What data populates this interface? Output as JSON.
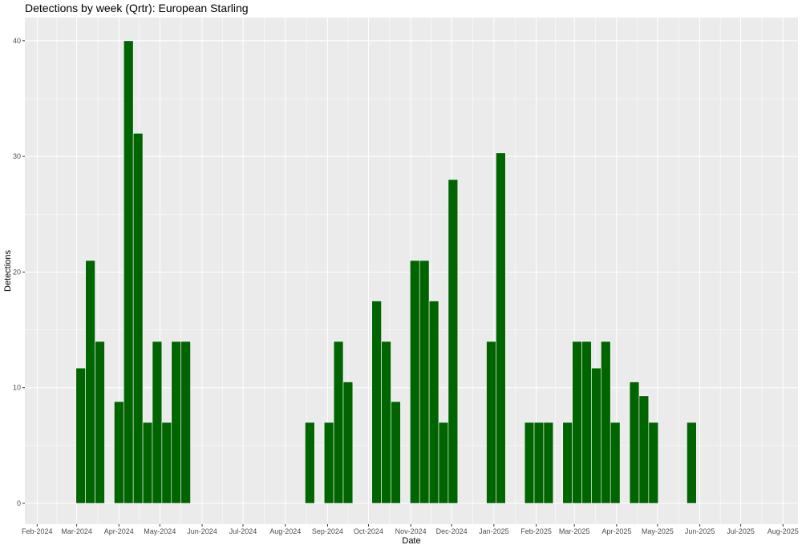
{
  "chart_data": {
    "type": "bar",
    "title": "Detections by week (Qrtr): European Starling",
    "xlabel": "Date",
    "ylabel": "Detections",
    "ylim": [
      -1.8,
      42
    ],
    "yticks": [
      0,
      10,
      20,
      30,
      40
    ],
    "xlim": [
      "2024-01-23",
      "2025-08-12"
    ],
    "xticks": [
      {
        "date": "2024-02-01",
        "label": "Feb-2024"
      },
      {
        "date": "2024-03-01",
        "label": "Mar-2024"
      },
      {
        "date": "2024-04-01",
        "label": "Apr-2024"
      },
      {
        "date": "2024-05-01",
        "label": "May-2024"
      },
      {
        "date": "2024-06-01",
        "label": "Jun-2024"
      },
      {
        "date": "2024-07-01",
        "label": "Jul-2024"
      },
      {
        "date": "2024-08-01",
        "label": "Aug-2024"
      },
      {
        "date": "2024-09-01",
        "label": "Sep-2024"
      },
      {
        "date": "2024-10-01",
        "label": "Oct-2024"
      },
      {
        "date": "2024-11-01",
        "label": "Nov-2024"
      },
      {
        "date": "2024-12-01",
        "label": "Dec-2024"
      },
      {
        "date": "2025-01-01",
        "label": "Jan-2025"
      },
      {
        "date": "2025-02-01",
        "label": "Feb-2025"
      },
      {
        "date": "2025-03-01",
        "label": "Mar-2025"
      },
      {
        "date": "2025-04-01",
        "label": "Apr-2025"
      },
      {
        "date": "2025-05-01",
        "label": "May-2025"
      },
      {
        "date": "2025-06-01",
        "label": "Jun-2025"
      },
      {
        "date": "2025-07-01",
        "label": "Jul-2025"
      },
      {
        "date": "2025-08-01",
        "label": "Aug-2025"
      }
    ],
    "bar_color": "#006400",
    "panel_color": "#ebebeb",
    "grid": true,
    "points": [
      {
        "x": "2024-03-04",
        "y": 11.7
      },
      {
        "x": "2024-03-11",
        "y": 21
      },
      {
        "x": "2024-03-18",
        "y": 14
      },
      {
        "x": "2024-04-01",
        "y": 8.8
      },
      {
        "x": "2024-04-08",
        "y": 40
      },
      {
        "x": "2024-04-15",
        "y": 32
      },
      {
        "x": "2024-04-22",
        "y": 7
      },
      {
        "x": "2024-04-29",
        "y": 14
      },
      {
        "x": "2024-05-06",
        "y": 7
      },
      {
        "x": "2024-05-13",
        "y": 14
      },
      {
        "x": "2024-05-20",
        "y": 14
      },
      {
        "x": "2024-08-19",
        "y": 7
      },
      {
        "x": "2024-09-02",
        "y": 7
      },
      {
        "x": "2024-09-09",
        "y": 14
      },
      {
        "x": "2024-09-16",
        "y": 10.5
      },
      {
        "x": "2024-10-07",
        "y": 17.5
      },
      {
        "x": "2024-10-14",
        "y": 14
      },
      {
        "x": "2024-10-21",
        "y": 8.8
      },
      {
        "x": "2024-11-04",
        "y": 21
      },
      {
        "x": "2024-11-11",
        "y": 21
      },
      {
        "x": "2024-11-18",
        "y": 17.5
      },
      {
        "x": "2024-11-25",
        "y": 7
      },
      {
        "x": "2024-12-02",
        "y": 28
      },
      {
        "x": "2024-12-30",
        "y": 14
      },
      {
        "x": "2025-01-06",
        "y": 30.3
      },
      {
        "x": "2025-01-27",
        "y": 7
      },
      {
        "x": "2025-02-03",
        "y": 7
      },
      {
        "x": "2025-02-10",
        "y": 7
      },
      {
        "x": "2025-02-24",
        "y": 7
      },
      {
        "x": "2025-03-03",
        "y": 14
      },
      {
        "x": "2025-03-10",
        "y": 14
      },
      {
        "x": "2025-03-17",
        "y": 11.7
      },
      {
        "x": "2025-03-24",
        "y": 14
      },
      {
        "x": "2025-03-31",
        "y": 7
      },
      {
        "x": "2025-04-14",
        "y": 10.5
      },
      {
        "x": "2025-04-21",
        "y": 9.3
      },
      {
        "x": "2025-04-28",
        "y": 7
      },
      {
        "x": "2025-05-26",
        "y": 7
      }
    ]
  }
}
